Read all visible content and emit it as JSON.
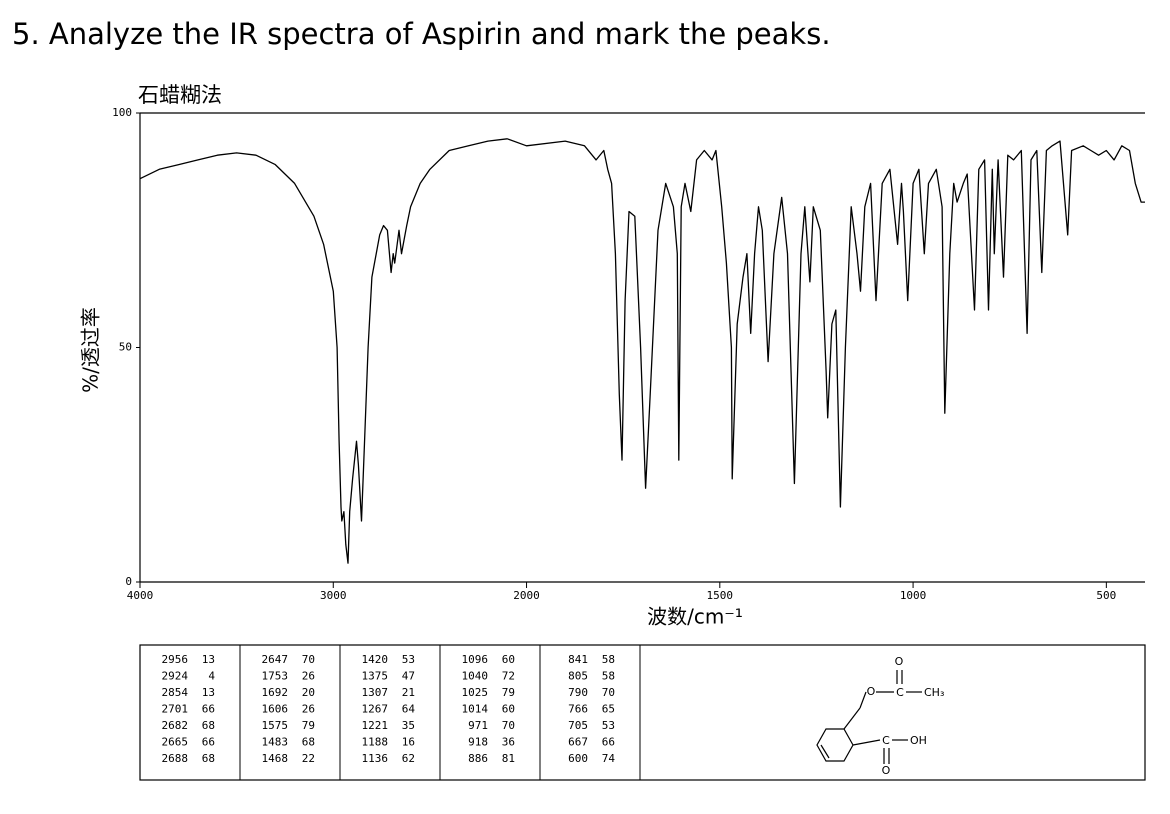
{
  "question": "5.  Analyze the IR spectra of Aspirin and mark the peaks.",
  "chart_data": {
    "type": "line",
    "title": "石蜡糊法",
    "ylabel": "%/透过率",
    "xlabel": "波数/cm⁻¹",
    "color": "#000000",
    "xlim": [
      4000,
      400
    ],
    "xticks": [
      4000,
      3000,
      2000,
      1500,
      1000,
      500
    ],
    "ylim": [
      0,
      100
    ],
    "yticks": [
      0,
      50,
      100
    ],
    "x": [
      4000,
      3900,
      3800,
      3700,
      3600,
      3500,
      3400,
      3300,
      3200,
      3100,
      3050,
      3000,
      2980,
      2970,
      2960,
      2956,
      2945,
      2935,
      2924,
      2915,
      2900,
      2880,
      2870,
      2854,
      2840,
      2820,
      2800,
      2760,
      2740,
      2720,
      2701,
      2690,
      2682,
      2660,
      2647,
      2620,
      2600,
      2550,
      2500,
      2400,
      2300,
      2200,
      2100,
      2000,
      1900,
      1850,
      1820,
      1800,
      1790,
      1780,
      1770,
      1760,
      1753,
      1745,
      1735,
      1720,
      1705,
      1692,
      1680,
      1660,
      1640,
      1620,
      1610,
      1606,
      1600,
      1590,
      1575,
      1560,
      1540,
      1520,
      1510,
      1495,
      1483,
      1470,
      1468,
      1455,
      1440,
      1430,
      1420,
      1410,
      1400,
      1390,
      1375,
      1360,
      1340,
      1325,
      1307,
      1290,
      1280,
      1267,
      1258,
      1240,
      1225,
      1221,
      1210,
      1200,
      1188,
      1175,
      1160,
      1145,
      1136,
      1125,
      1110,
      1096,
      1080,
      1060,
      1040,
      1030,
      1025,
      1014,
      1000,
      985,
      971,
      960,
      940,
      925,
      918,
      905,
      895,
      886,
      870,
      860,
      841,
      830,
      815,
      805,
      795,
      790,
      780,
      766,
      755,
      740,
      720,
      705,
      695,
      680,
      667,
      655,
      640,
      620,
      600,
      590,
      560,
      540,
      520,
      500,
      480,
      460,
      440,
      425,
      410,
      400
    ],
    "values": [
      86,
      88,
      89,
      90,
      91,
      91.5,
      91,
      89,
      85,
      78,
      72,
      62,
      50,
      30,
      16,
      13,
      15,
      8,
      4,
      15,
      22,
      30,
      25,
      13,
      28,
      50,
      65,
      74,
      76,
      75,
      66,
      70,
      68,
      75,
      70,
      76,
      80,
      85,
      88,
      92,
      93,
      94,
      94.5,
      93,
      94,
      93,
      90,
      92,
      88,
      85,
      70,
      40,
      26,
      60,
      79,
      78,
      50,
      20,
      40,
      75,
      85,
      80,
      70,
      26,
      80,
      85,
      79,
      90,
      92,
      90,
      92,
      80,
      68,
      50,
      22,
      55,
      65,
      70,
      53,
      70,
      80,
      75,
      47,
      70,
      82,
      70,
      21,
      70,
      80,
      64,
      80,
      75,
      45,
      35,
      55,
      58,
      16,
      50,
      80,
      70,
      62,
      80,
      85,
      60,
      85,
      88,
      72,
      85,
      79,
      60,
      85,
      88,
      70,
      85,
      88,
      80,
      36,
      70,
      85,
      81,
      85,
      87,
      58,
      88,
      90,
      58,
      88,
      70,
      90,
      65,
      91,
      90,
      92,
      53,
      90,
      92,
      66,
      92,
      93,
      94,
      74,
      92,
      93,
      92,
      91,
      92,
      90,
      93,
      92,
      85,
      81,
      81
    ]
  },
  "table": {
    "columns": [
      [
        [
          2956,
          13
        ],
        [
          2924,
          4
        ],
        [
          2854,
          13
        ],
        [
          2701,
          66
        ],
        [
          2682,
          68
        ],
        [
          2665,
          66
        ],
        [
          2688,
          68
        ]
      ],
      [
        [
          2647,
          70
        ],
        [
          1753,
          26
        ],
        [
          1692,
          20
        ],
        [
          1606,
          26
        ],
        [
          1575,
          79
        ],
        [
          1483,
          68
        ],
        [
          1468,
          22
        ]
      ],
      [
        [
          1420,
          53
        ],
        [
          1375,
          47
        ],
        [
          1307,
          21
        ],
        [
          1267,
          64
        ],
        [
          1221,
          35
        ],
        [
          1188,
          16
        ],
        [
          1136,
          62
        ]
      ],
      [
        [
          1096,
          60
        ],
        [
          1040,
          72
        ],
        [
          1025,
          79
        ],
        [
          1014,
          60
        ],
        [
          971,
          70
        ],
        [
          918,
          36
        ],
        [
          886,
          81
        ]
      ],
      [
        [
          841,
          58
        ],
        [
          805,
          58
        ],
        [
          790,
          70
        ],
        [
          766,
          65
        ],
        [
          705,
          53
        ],
        [
          667,
          66
        ],
        [
          600,
          74
        ]
      ]
    ]
  },
  "structure": {
    "atoms": [
      "O",
      "O",
      "C",
      "CH₃",
      "C",
      "OH",
      "O"
    ]
  }
}
